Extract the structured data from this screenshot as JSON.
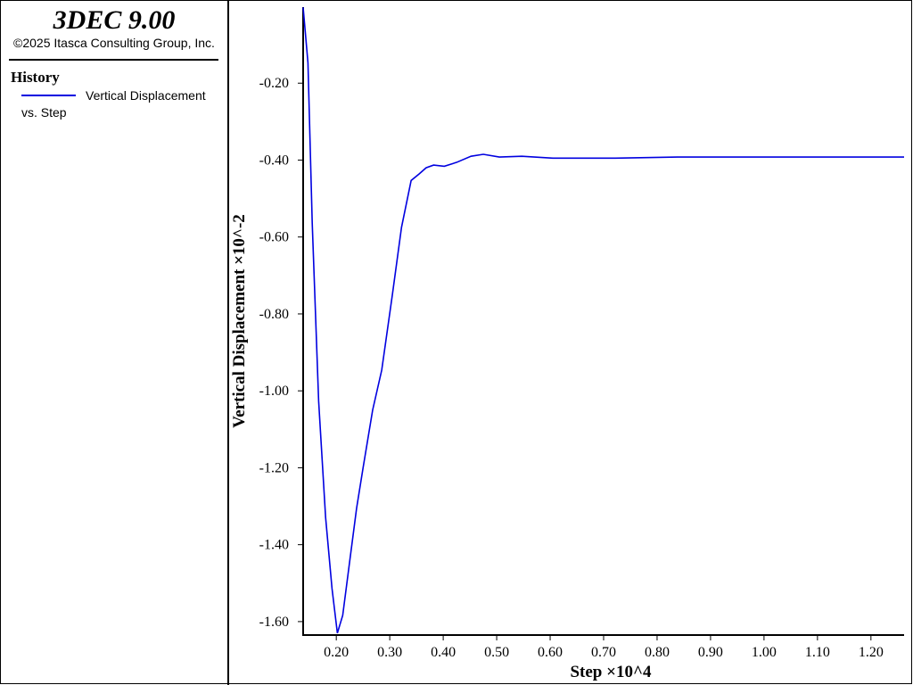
{
  "header": {
    "title": "3DEC 9.00",
    "copyright": "©2025 Itasca Consulting Group, Inc."
  },
  "legend": {
    "heading": "History",
    "entry": "Vertical Displacement",
    "entry_sub": "vs. Step"
  },
  "chart_data": {
    "type": "line",
    "x_label": "Step ×10^4",
    "y_label": "Vertical Displacement ×10^-2",
    "xlim": [
      0.138,
      1.262
    ],
    "ylim": [
      -1.635,
      0
    ],
    "xticks": [
      {
        "value": 0.2,
        "label": "0.20"
      },
      {
        "value": 0.3,
        "label": "0.30"
      },
      {
        "value": 0.4,
        "label": "0.40"
      },
      {
        "value": 0.5,
        "label": "0.50"
      },
      {
        "value": 0.6,
        "label": "0.60"
      },
      {
        "value": 0.7,
        "label": "0.70"
      },
      {
        "value": 0.8,
        "label": "0.80"
      },
      {
        "value": 0.9,
        "label": "0.90"
      },
      {
        "value": 1.0,
        "label": "1.00"
      },
      {
        "value": 1.1,
        "label": "1.10"
      },
      {
        "value": 1.2,
        "label": "1.20"
      }
    ],
    "yticks": [
      {
        "value": -0.2,
        "label": "-0.20"
      },
      {
        "value": -0.4,
        "label": "-0.40"
      },
      {
        "value": -0.6,
        "label": "-0.60"
      },
      {
        "value": -0.8,
        "label": "-0.80"
      },
      {
        "value": -1.0,
        "label": "-1.00"
      },
      {
        "value": -1.2,
        "label": "-1.20"
      },
      {
        "value": -1.4,
        "label": "-1.40"
      },
      {
        "value": -1.6,
        "label": "-1.60"
      }
    ],
    "series": [
      {
        "name": "Vertical Displacement",
        "color": "#0000e0",
        "x": [
          0.138,
          0.147,
          0.155,
          0.167,
          0.18,
          0.192,
          0.202,
          0.212,
          0.225,
          0.238,
          0.25,
          0.268,
          0.285,
          0.305,
          0.322,
          0.34,
          0.355,
          0.368,
          0.382,
          0.402,
          0.425,
          0.452,
          0.475,
          0.505,
          0.547,
          0.605,
          0.722,
          0.838,
          1.262
        ],
        "values": [
          -0.003,
          -0.147,
          -0.564,
          -1.027,
          -1.329,
          -1.514,
          -1.63,
          -1.584,
          -1.444,
          -1.305,
          -1.201,
          -1.05,
          -0.946,
          -0.749,
          -0.575,
          -0.453,
          -0.436,
          -0.42,
          -0.413,
          -0.416,
          -0.406,
          -0.39,
          -0.385,
          -0.392,
          -0.39,
          -0.395,
          -0.395,
          -0.392,
          -0.392
        ]
      }
    ]
  }
}
